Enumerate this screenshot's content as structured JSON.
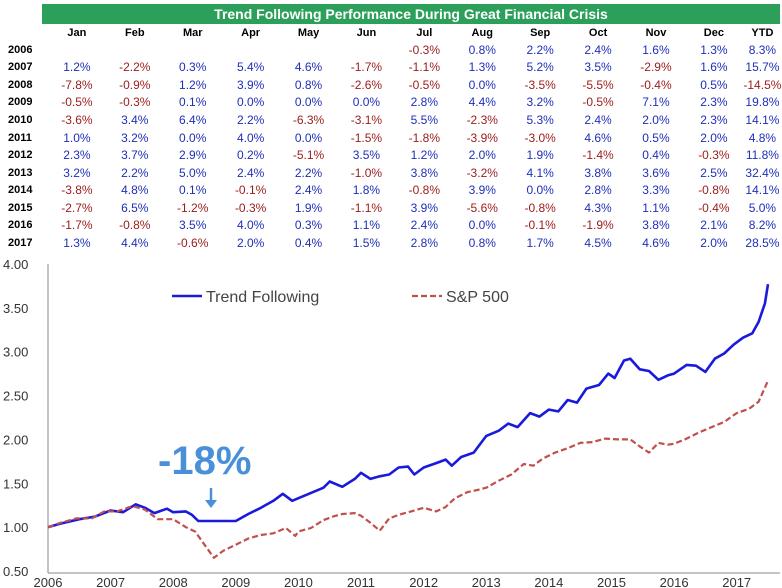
{
  "title": "Trend Following Performance During Great Financial Crisis",
  "table": {
    "headers": [
      "Jan",
      "Feb",
      "Mar",
      "Apr",
      "May",
      "Jun",
      "Jul",
      "Aug",
      "Sep",
      "Oct",
      "Nov",
      "Dec",
      "YTD"
    ],
    "rows": [
      {
        "year": "2006",
        "values": [
          "",
          "",
          "",
          "",
          "",
          "",
          "-0.3%",
          "0.8%",
          "2.2%",
          "2.4%",
          "1.6%",
          "1.3%",
          "8.3%"
        ]
      },
      {
        "year": "2007",
        "values": [
          "1.2%",
          "-2.2%",
          "0.3%",
          "5.4%",
          "4.6%",
          "-1.7%",
          "-1.1%",
          "1.3%",
          "5.2%",
          "3.5%",
          "-2.9%",
          "1.6%",
          "15.7%"
        ]
      },
      {
        "year": "2008",
        "values": [
          "-7.8%",
          "-0.9%",
          "1.2%",
          "3.9%",
          "0.8%",
          "-2.6%",
          "-0.5%",
          "0.0%",
          "-3.5%",
          "-5.5%",
          "-0.4%",
          "0.5%",
          "-14.5%"
        ]
      },
      {
        "year": "2009",
        "values": [
          "-0.5%",
          "-0.3%",
          "0.1%",
          "0.0%",
          "0.0%",
          "0.0%",
          "2.8%",
          "4.4%",
          "3.2%",
          "-0.5%",
          "7.1%",
          "2.3%",
          "19.8%"
        ]
      },
      {
        "year": "2010",
        "values": [
          "-3.6%",
          "3.4%",
          "6.4%",
          "2.2%",
          "-6.3%",
          "-3.1%",
          "5.5%",
          "-2.3%",
          "5.3%",
          "2.4%",
          "2.0%",
          "2.3%",
          "14.1%"
        ]
      },
      {
        "year": "2011",
        "values": [
          "1.0%",
          "3.2%",
          "0.0%",
          "4.0%",
          "0.0%",
          "-1.5%",
          "-1.8%",
          "-3.9%",
          "-3.0%",
          "4.6%",
          "0.5%",
          "2.0%",
          "4.8%"
        ]
      },
      {
        "year": "2012",
        "values": [
          "2.3%",
          "3.7%",
          "2.9%",
          "0.2%",
          "-5.1%",
          "3.5%",
          "1.2%",
          "2.0%",
          "1.9%",
          "-1.4%",
          "0.4%",
          "-0.3%",
          "11.8%"
        ]
      },
      {
        "year": "2013",
        "values": [
          "3.2%",
          "2.2%",
          "5.0%",
          "2.4%",
          "2.2%",
          "-1.0%",
          "3.8%",
          "-3.2%",
          "4.1%",
          "3.8%",
          "3.6%",
          "2.5%",
          "32.4%"
        ]
      },
      {
        "year": "2014",
        "values": [
          "-3.8%",
          "4.8%",
          "0.1%",
          "-0.1%",
          "2.4%",
          "1.8%",
          "-0.8%",
          "3.9%",
          "0.0%",
          "2.8%",
          "3.3%",
          "-0.8%",
          "14.1%"
        ]
      },
      {
        "year": "2015",
        "values": [
          "-2.7%",
          "6.5%",
          "-1.2%",
          "-0.3%",
          "1.9%",
          "-1.1%",
          "3.9%",
          "-5.6%",
          "-0.8%",
          "4.3%",
          "1.1%",
          "-0.4%",
          "5.0%"
        ]
      },
      {
        "year": "2016",
        "values": [
          "-1.7%",
          "-0.8%",
          "3.5%",
          "4.0%",
          "0.3%",
          "1.1%",
          "2.4%",
          "0.0%",
          "-0.1%",
          "-1.9%",
          "3.8%",
          "2.1%",
          "8.2%"
        ]
      },
      {
        "year": "2017",
        "values": [
          "1.3%",
          "4.4%",
          "-0.6%",
          "2.0%",
          "0.4%",
          "1.5%",
          "2.8%",
          "0.8%",
          "1.7%",
          "4.5%",
          "4.6%",
          "2.0%",
          "28.5%"
        ]
      }
    ]
  },
  "chart_data": {
    "type": "line",
    "ylim": [
      0.5,
      4.0
    ],
    "xlim": [
      2006,
      2017.5
    ],
    "yticks": [
      "4.00",
      "3.50",
      "3.00",
      "2.50",
      "2.00",
      "1.50",
      "1.00",
      "0.50"
    ],
    "xticks": [
      "2006",
      "2007",
      "2008",
      "2009",
      "2010",
      "2011",
      "2012",
      "2013",
      "2014",
      "2015",
      "2016",
      "2017"
    ],
    "annotation": "-18%",
    "series": [
      {
        "name": "Trend Following",
        "color": "#1a1adc",
        "style": "solid",
        "points": [
          [
            2006.0,
            1.0
          ],
          [
            2006.2,
            1.04
          ],
          [
            2006.5,
            1.09
          ],
          [
            2006.75,
            1.12
          ],
          [
            2007.0,
            1.19
          ],
          [
            2007.2,
            1.17
          ],
          [
            2007.4,
            1.26
          ],
          [
            2007.55,
            1.22
          ],
          [
            2007.7,
            1.16
          ],
          [
            2007.9,
            1.21
          ],
          [
            2008.0,
            1.17
          ],
          [
            2008.2,
            1.18
          ],
          [
            2008.3,
            1.14
          ],
          [
            2008.4,
            1.07
          ],
          [
            2008.6,
            1.07
          ],
          [
            2008.9,
            1.07
          ],
          [
            2009.0,
            1.07
          ],
          [
            2009.2,
            1.15
          ],
          [
            2009.4,
            1.22
          ],
          [
            2009.6,
            1.3
          ],
          [
            2009.75,
            1.38
          ],
          [
            2009.9,
            1.3
          ],
          [
            2010.0,
            1.33
          ],
          [
            2010.2,
            1.39
          ],
          [
            2010.4,
            1.45
          ],
          [
            2010.5,
            1.52
          ],
          [
            2010.7,
            1.46
          ],
          [
            2010.9,
            1.55
          ],
          [
            2011.0,
            1.62
          ],
          [
            2011.15,
            1.55
          ],
          [
            2011.3,
            1.58
          ],
          [
            2011.45,
            1.6
          ],
          [
            2011.6,
            1.68
          ],
          [
            2011.75,
            1.69
          ],
          [
            2011.85,
            1.6
          ],
          [
            2012.0,
            1.68
          ],
          [
            2012.2,
            1.73
          ],
          [
            2012.35,
            1.77
          ],
          [
            2012.45,
            1.7
          ],
          [
            2012.6,
            1.8
          ],
          [
            2012.8,
            1.85
          ],
          [
            2013.0,
            2.04
          ],
          [
            2013.2,
            2.1
          ],
          [
            2013.35,
            2.18
          ],
          [
            2013.5,
            2.14
          ],
          [
            2013.7,
            2.3
          ],
          [
            2013.85,
            2.26
          ],
          [
            2014.0,
            2.34
          ],
          [
            2014.15,
            2.32
          ],
          [
            2014.3,
            2.45
          ],
          [
            2014.45,
            2.42
          ],
          [
            2014.6,
            2.58
          ],
          [
            2014.8,
            2.62
          ],
          [
            2014.95,
            2.75
          ],
          [
            2015.05,
            2.7
          ],
          [
            2015.2,
            2.9
          ],
          [
            2015.3,
            2.92
          ],
          [
            2015.45,
            2.8
          ],
          [
            2015.6,
            2.78
          ],
          [
            2015.75,
            2.68
          ],
          [
            2015.9,
            2.73
          ],
          [
            2016.0,
            2.75
          ],
          [
            2016.2,
            2.85
          ],
          [
            2016.35,
            2.84
          ],
          [
            2016.5,
            2.77
          ],
          [
            2016.65,
            2.92
          ],
          [
            2016.8,
            2.98
          ],
          [
            2016.95,
            3.08
          ],
          [
            2017.1,
            3.16
          ],
          [
            2017.25,
            3.21
          ],
          [
            2017.35,
            3.34
          ],
          [
            2017.45,
            3.55
          ],
          [
            2017.5,
            3.77
          ]
        ]
      },
      {
        "name": "S&P 500",
        "color": "#c0504d",
        "style": "dashed",
        "points": [
          [
            2006.0,
            1.0
          ],
          [
            2006.2,
            1.05
          ],
          [
            2006.45,
            1.1
          ],
          [
            2006.7,
            1.1
          ],
          [
            2006.9,
            1.18
          ],
          [
            2007.1,
            1.18
          ],
          [
            2007.35,
            1.24
          ],
          [
            2007.55,
            1.2
          ],
          [
            2007.75,
            1.09
          ],
          [
            2008.0,
            1.09
          ],
          [
            2008.2,
            1.0
          ],
          [
            2008.35,
            0.95
          ],
          [
            2008.5,
            0.8
          ],
          [
            2008.65,
            0.65
          ],
          [
            2008.8,
            0.73
          ],
          [
            2009.0,
            0.8
          ],
          [
            2009.2,
            0.87
          ],
          [
            2009.4,
            0.91
          ],
          [
            2009.6,
            0.93
          ],
          [
            2009.8,
            0.99
          ],
          [
            2009.95,
            0.9
          ],
          [
            2010.0,
            0.95
          ],
          [
            2010.2,
            0.99
          ],
          [
            2010.4,
            1.08
          ],
          [
            2010.55,
            1.12
          ],
          [
            2010.7,
            1.15
          ],
          [
            2010.9,
            1.16
          ],
          [
            2011.0,
            1.13
          ],
          [
            2011.15,
            1.05
          ],
          [
            2011.3,
            0.96
          ],
          [
            2011.45,
            1.1
          ],
          [
            2011.6,
            1.14
          ],
          [
            2011.8,
            1.18
          ],
          [
            2012.0,
            1.22
          ],
          [
            2012.2,
            1.18
          ],
          [
            2012.35,
            1.23
          ],
          [
            2012.5,
            1.33
          ],
          [
            2012.7,
            1.4
          ],
          [
            2012.9,
            1.43
          ],
          [
            2013.0,
            1.45
          ],
          [
            2013.2,
            1.53
          ],
          [
            2013.4,
            1.6
          ],
          [
            2013.6,
            1.72
          ],
          [
            2013.75,
            1.7
          ],
          [
            2013.9,
            1.78
          ],
          [
            2014.1,
            1.85
          ],
          [
            2014.3,
            1.9
          ],
          [
            2014.5,
            1.96
          ],
          [
            2014.7,
            1.97
          ],
          [
            2014.9,
            2.01
          ],
          [
            2015.1,
            2.0
          ],
          [
            2015.3,
            2.0
          ],
          [
            2015.45,
            1.92
          ],
          [
            2015.6,
            1.85
          ],
          [
            2015.75,
            1.96
          ],
          [
            2015.9,
            1.94
          ],
          [
            2016.0,
            1.95
          ],
          [
            2016.2,
            2.01
          ],
          [
            2016.4,
            2.08
          ],
          [
            2016.6,
            2.14
          ],
          [
            2016.8,
            2.2
          ],
          [
            2017.0,
            2.3
          ],
          [
            2017.2,
            2.35
          ],
          [
            2017.35,
            2.43
          ],
          [
            2017.5,
            2.67
          ]
        ]
      }
    ]
  }
}
